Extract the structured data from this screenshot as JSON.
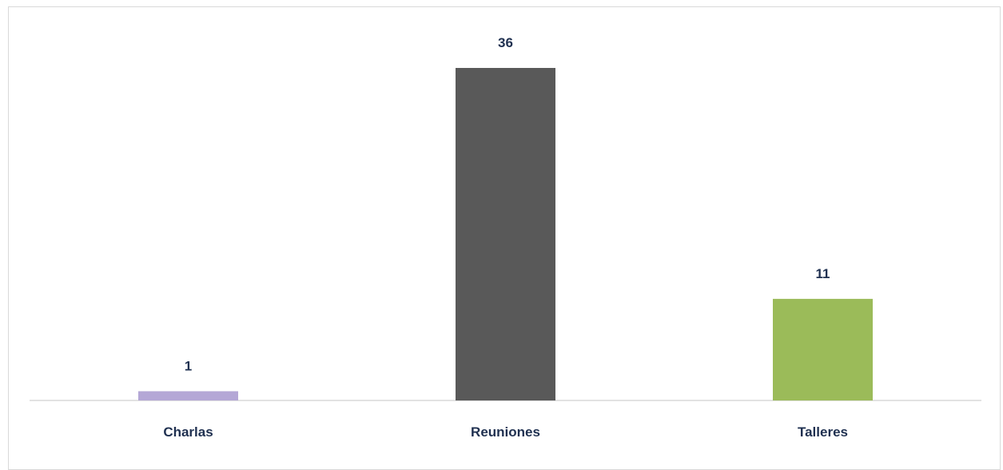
{
  "chart_data": {
    "type": "bar",
    "categories": [
      "Charlas",
      "Reuniones",
      "Talleres"
    ],
    "values": [
      1,
      36,
      11
    ],
    "colors": [
      "#b4a7d6",
      "#595959",
      "#9bbb59"
    ],
    "ylim": [
      0,
      36
    ],
    "grid": false,
    "legend": "none",
    "axis_color": "#d9d9d9",
    "label_color": "#1f3050"
  }
}
